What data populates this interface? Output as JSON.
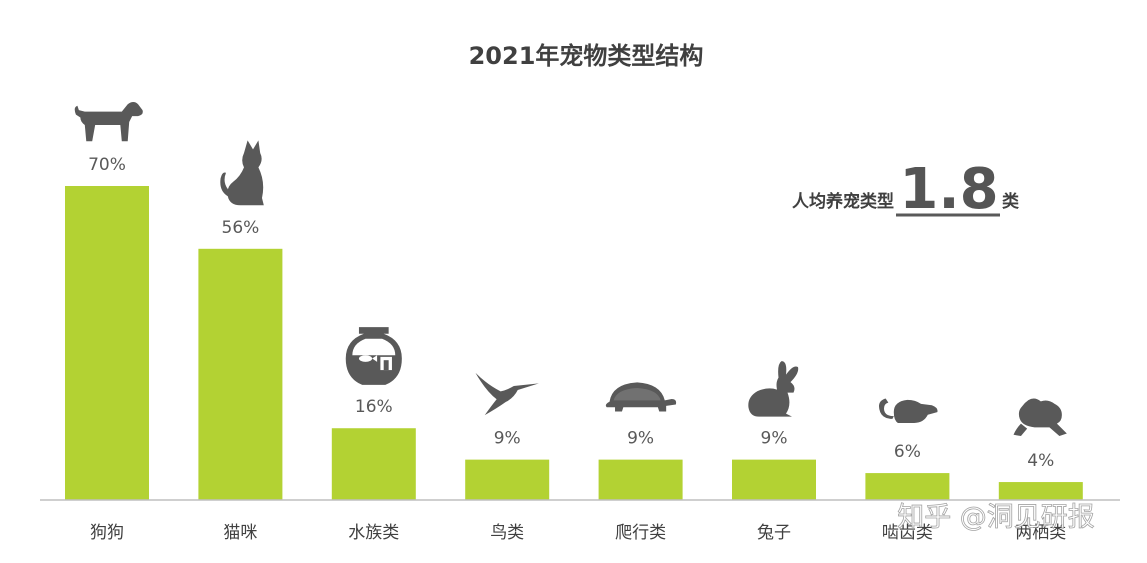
{
  "chart_data": {
    "type": "bar",
    "title": "2021年宠物类型结构",
    "categories": [
      "狗狗",
      "猫咪",
      "水族类",
      "鸟类",
      "爬行类",
      "兔子",
      "啮齿类",
      "两栖类"
    ],
    "values": [
      70,
      56,
      16,
      9,
      9,
      9,
      6,
      4
    ],
    "value_labels": [
      "70%",
      "56%",
      "16%",
      "9%",
      "9%",
      "9%",
      "6%",
      "4%"
    ],
    "icons": [
      "dog-icon",
      "cat-icon",
      "fishbowl-icon",
      "hummingbird-icon",
      "turtle-icon",
      "rabbit-icon",
      "mouse-icon",
      "frog-icon"
    ],
    "ylim": [
      0,
      70
    ],
    "xlabel": "",
    "ylabel": "",
    "grid": false,
    "bar_color": "#b3d233",
    "annotation": {
      "label": "人均养宠类型",
      "value": "1.8",
      "unit": "类"
    }
  },
  "watermark": "知乎 @洞见研报"
}
